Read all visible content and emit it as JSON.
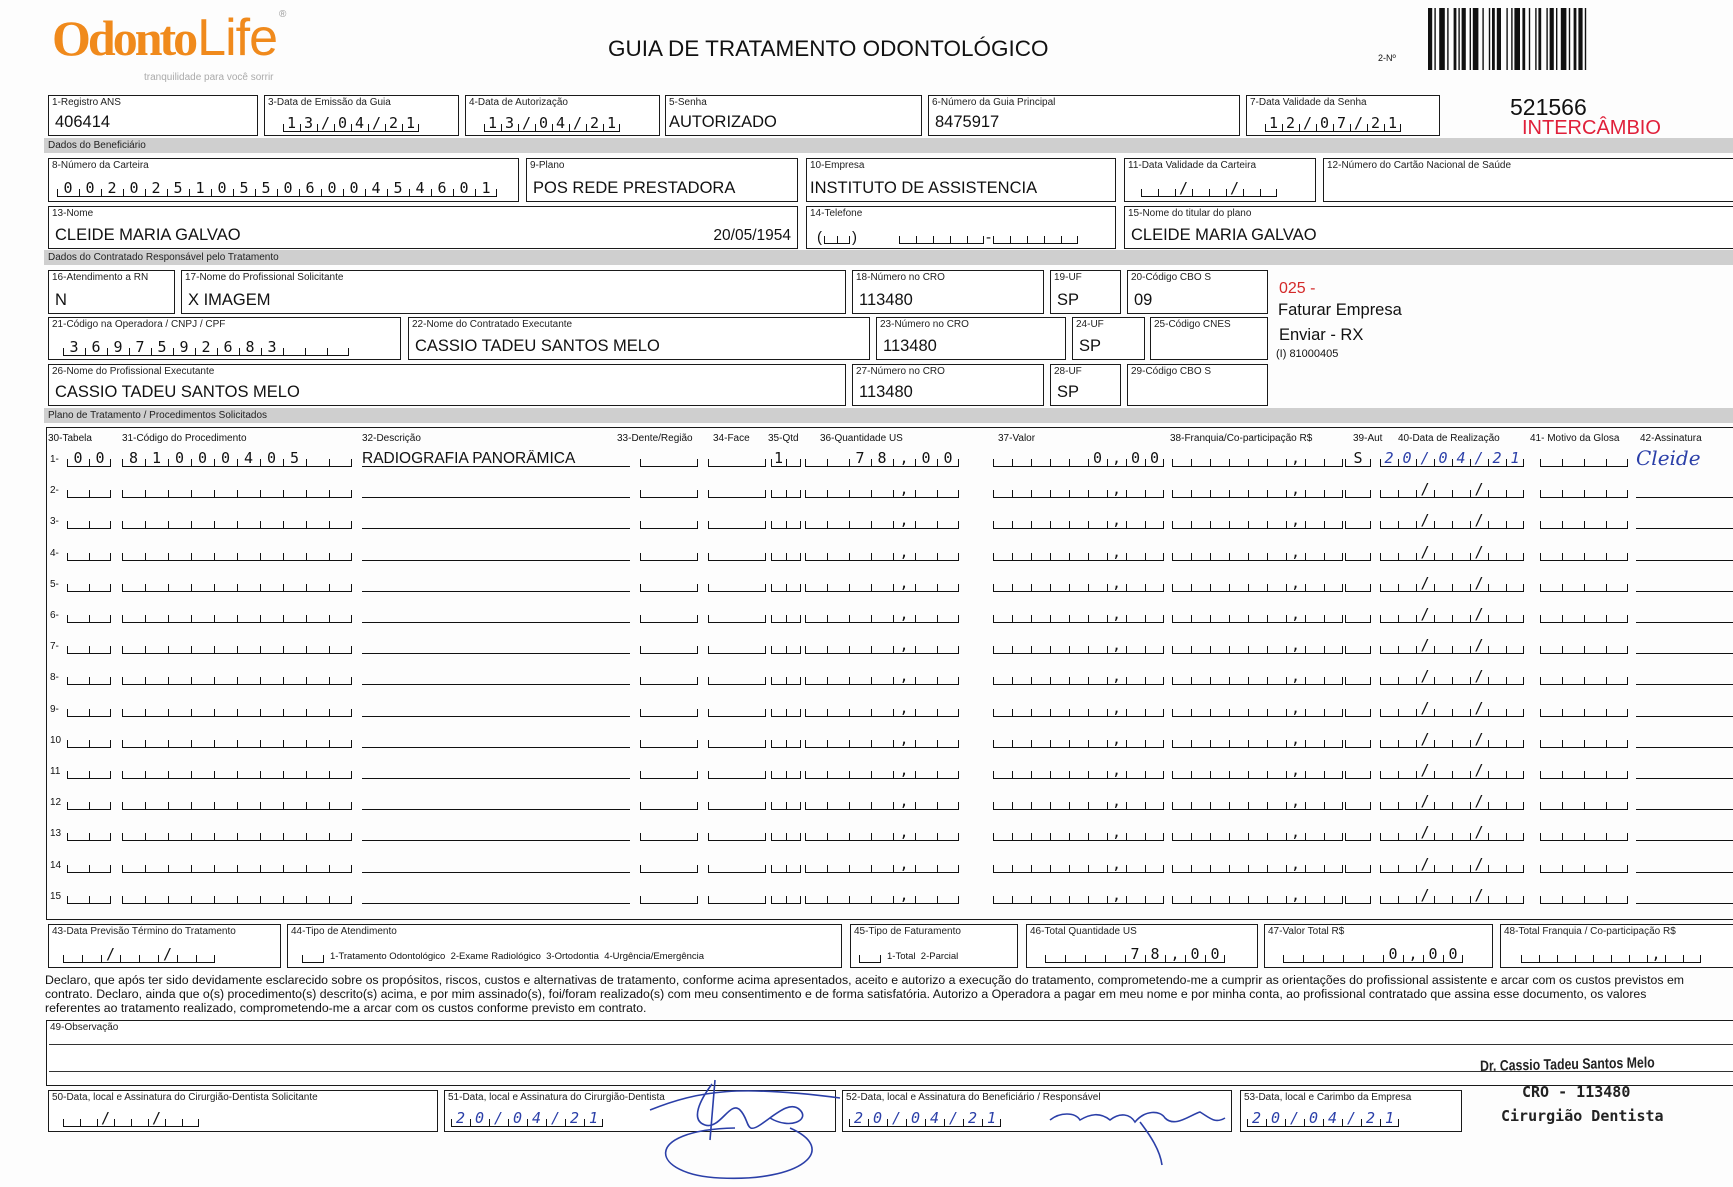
{
  "logo": {
    "brand_a": "Odonto",
    "brand_b": "Life",
    "reg": "®",
    "tagline": "tranquilidade para você sorrir"
  },
  "header": {
    "title": "GUIA DE TRATAMENTO ODONTOLÓGICO",
    "number_label": "2-Nº",
    "guide_number": "521566",
    "tag": "INTERCÂMBIO",
    "tag_color": "#e0203a"
  },
  "sections": {
    "beneficiario": "Dados do Beneficiário",
    "contratado": "Dados do Contratado Responsável pelo Tratamento",
    "plano": "Plano de Tratamento / Procedimentos Solicitados"
  },
  "fields": {
    "f1": {
      "label": "1-Registro ANS",
      "value": "406414"
    },
    "f3": {
      "label": "3-Data de Emissão da Guia",
      "value": "13/04/21"
    },
    "f4": {
      "label": "4-Data de Autorização",
      "value": "13/04/21"
    },
    "f5": {
      "label": "5-Senha",
      "value": "AUTORIZADO"
    },
    "f6": {
      "label": "6-Número da Guia Principal",
      "value": "8475917"
    },
    "f7": {
      "label": "7-Data Validade da Senha",
      "value": "12/07/21"
    },
    "f8": {
      "label": "8-Número da Carteira",
      "value": "00202510550600454601"
    },
    "f9": {
      "label": "9-Plano",
      "value": "POS REDE PRESTADORA"
    },
    "f10": {
      "label": "10-Empresa",
      "value": "INSTITUTO DE ASSISTENCIA"
    },
    "f11": {
      "label": "11-Data Validade da Carteira",
      "value": ""
    },
    "f12": {
      "label": "12-Número do Cartão Nacional de Saúde",
      "value": ""
    },
    "f13": {
      "label": "13-Nome",
      "value": "CLEIDE MARIA GALVAO",
      "birth": "20/05/1954"
    },
    "f14": {
      "label": "14-Telefone",
      "value": ""
    },
    "f15": {
      "label": "15-Nome do titular do plano",
      "value": "CLEIDE MARIA GALVAO"
    },
    "f16": {
      "label": "16-Atendimento a RN",
      "value": "N"
    },
    "f17": {
      "label": "17-Nome do Profissional Solicitante",
      "value": "X IMAGEM"
    },
    "f18": {
      "label": "18-Número no CRO",
      "value": "113480"
    },
    "f19": {
      "label": "19-UF",
      "value": "SP"
    },
    "f20": {
      "label": "20-Código CBO S",
      "value": "09"
    },
    "f21": {
      "label": "21-Código na Operadora / CNPJ / CPF",
      "value": "3697592683"
    },
    "f22": {
      "label": "22-Nome do Contratado Executante",
      "value": "CASSIO TADEU SANTOS MELO"
    },
    "f23": {
      "label": "23-Número no CRO",
      "value": "113480"
    },
    "f24": {
      "label": "24-UF",
      "value": "SP"
    },
    "f25": {
      "label": "25-Código CNES",
      "value": ""
    },
    "f26": {
      "label": "26-Nome do Profissional Executante",
      "value": "CASSIO TADEU SANTOS MELO"
    },
    "f27": {
      "label": "27-Número no CRO",
      "value": "113480"
    },
    "f28": {
      "label": "28-UF",
      "value": "SP"
    },
    "f29": {
      "label": "29-Código CBO S",
      "value": ""
    },
    "f43": {
      "label": "43-Data Previsão Término do Tratamento",
      "value": ""
    },
    "f44": {
      "label": "44-Tipo de Atendimento",
      "value": "",
      "options": "1-Tratamento Odontológico  2-Exame Radiológico  3-Ortodontia  4-Urgência/Emergência"
    },
    "f45": {
      "label": "45-Tipo de Faturamento",
      "value": "",
      "options": "1-Total  2-Parcial"
    },
    "f46": {
      "label": "46-Total Quantidade US",
      "value": "78,00"
    },
    "f47": {
      "label": "47-Valor Total R$",
      "value": "0,00"
    },
    "f48": {
      "label": "48-Total Franquia / Co-participação R$",
      "value": ""
    },
    "f49": {
      "label": "49-Observação",
      "value": ""
    },
    "f50": {
      "label": "50-Data, local e Assinatura do Cirurgião-Dentista Solicitante",
      "value": ""
    },
    "f51": {
      "label": "51-Data, local e Assinatura do Cirurgião-Dentista",
      "value": "20/04/21"
    },
    "f52": {
      "label": "52-Data, local e Assinatura do Beneficiário / Responsável",
      "value": "20/04/21"
    },
    "f53": {
      "label": "53-Data, local e Carimbo da Empresa",
      "value": "20/04/21"
    }
  },
  "notes": {
    "code": "025 -",
    "code_color": "#d42a2a",
    "line1": "Faturar Empresa",
    "line2": "Enviar - RX",
    "line3": "(I) 81000405"
  },
  "table": {
    "headers": [
      "30-Tabela",
      "31-Código do Procedimento",
      "32-Descrição",
      "33-Dente/Região",
      "34-Face",
      "35-Qtd",
      "36-Quantidade US",
      "37-Valor",
      "38-Franquia/Co-participação R$",
      "39-Aut",
      "40-Data de Realização",
      "41- Motivo da Glosa",
      "42-Assinatura"
    ],
    "rows": [
      {
        "no": "1-",
        "tabela": "00",
        "codigo": "81000405",
        "descricao": "RADIOGRAFIA PANORÂMICA",
        "dente": "",
        "face": "",
        "qtd": "1",
        "qtd_us": "78,00",
        "valor": "0,00",
        "franquia": "",
        "aut": "S",
        "data": "20/04/21",
        "glosa": "",
        "assinatura": "Cleide"
      },
      {
        "no": "2-"
      },
      {
        "no": "3-"
      },
      {
        "no": "4-"
      },
      {
        "no": "5-"
      },
      {
        "no": "6-"
      },
      {
        "no": "7-"
      },
      {
        "no": "8-"
      },
      {
        "no": "9-"
      },
      {
        "no": "10"
      },
      {
        "no": "11"
      },
      {
        "no": "12"
      },
      {
        "no": "13"
      },
      {
        "no": "14"
      },
      {
        "no": "15"
      }
    ]
  },
  "declaration": [
    "Declaro, que após ter sido devidamente esclarecido sobre os propósitos, riscos, custos e alternativas de tratamento, conforme acima apresentados, aceito e autorizo a execução do tratamento, comprometendo-me a cumprir as orientações do profissional assistente e arcar com os custos previstos em",
    "contrato. Declaro, ainda que o(s) procedimento(s) descrito(s) acima, e por mim assinado(s), foi/foram realizado(s) com meu consentimento e de forma satisfatória. Autorizo a Operadora a pagar em meu nome e por minha conta, ao profissional contratado que assina esse documento, os valores",
    "referentes ao tratamento realizado, comprometendo-me a arcar com os custos conforme previsto em contrato."
  ],
  "stamp": {
    "name": "Dr. Cassio Tadeu Santos Melo",
    "cro": "CRO - 113480",
    "title": "Cirurgião Dentista"
  },
  "colors": {
    "brand_orange": "#f08a1c",
    "ink_blue": "#2b3fa8",
    "band_gray": "#cfcfcf"
  }
}
